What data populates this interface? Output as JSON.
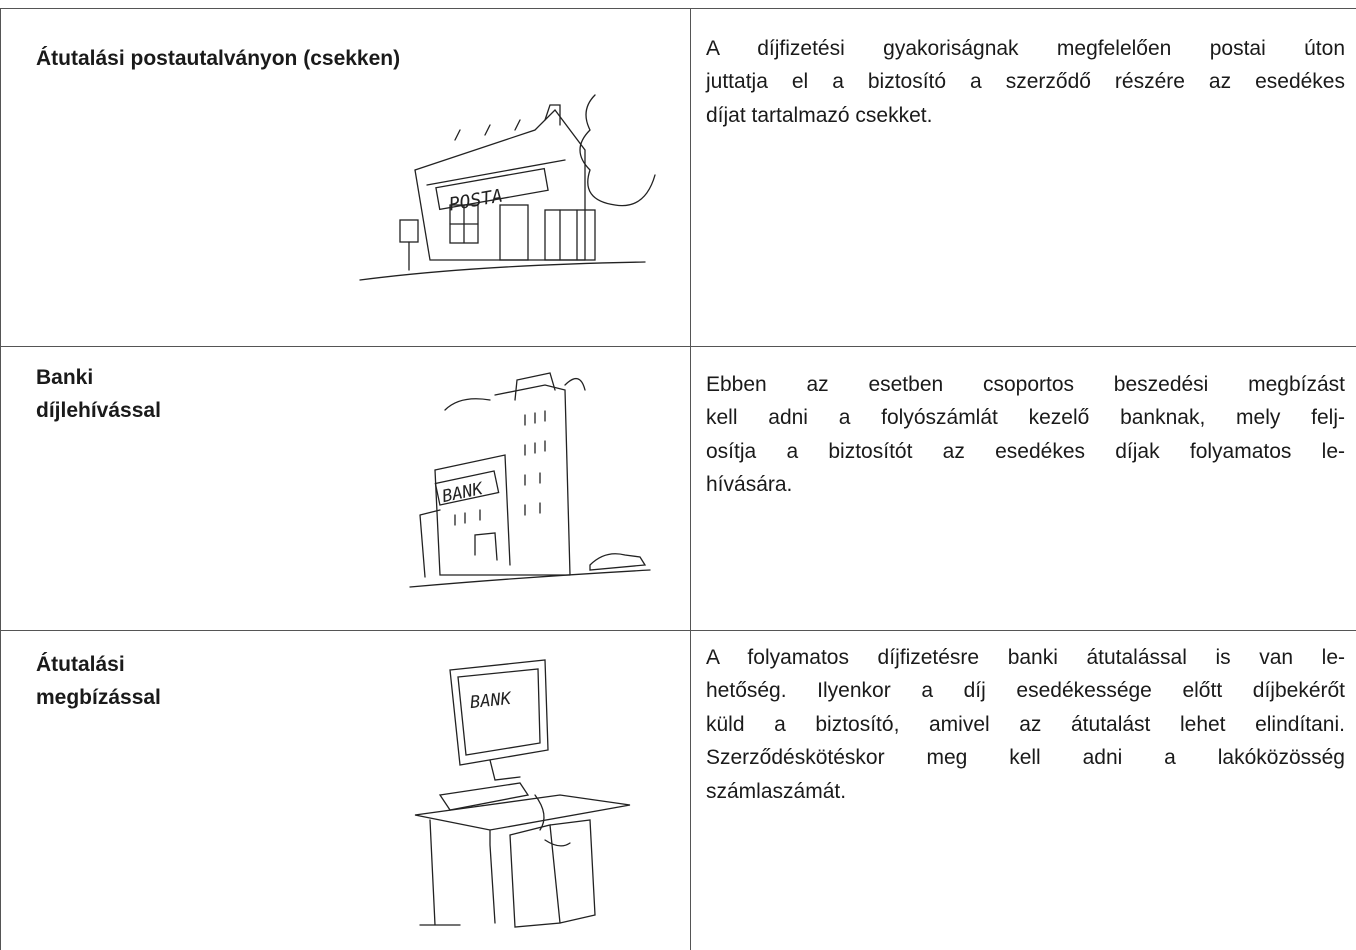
{
  "table": {
    "rows": [
      {
        "title": [
          "Átutalási postautalványon (csekken)"
        ],
        "text": [
          "A díjfizetési gyakoriságnak megfelelően postai úton",
          "juttatja el a biztosító a szerződő részére az esedékes",
          "díjat tartalmazó csekket."
        ]
      },
      {
        "title": [
          "Banki",
          "díjlehívással"
        ],
        "text": [
          "Ebben az esetben csoportos beszedési megbízást",
          "kell adni a folyószámlát kezelő banknak, mely felj-",
          "osítja a biztosítót az esedékes díjak folyamatos le-",
          "hívására."
        ]
      },
      {
        "title": [
          "Átutalási",
          "megbízással"
        ],
        "text": [
          "A folyamatos díjfizetésre banki átutalással is van le-",
          "hetőség. Ilyenkor a díj esedékessége előtt díjbekérőt",
          "küld a biztosító, amivel az átutalást lehet elindítani.",
          "Szerződéskötéskor meg kell adni a lakóközösség",
          "számlaszámát."
        ]
      }
    ]
  }
}
